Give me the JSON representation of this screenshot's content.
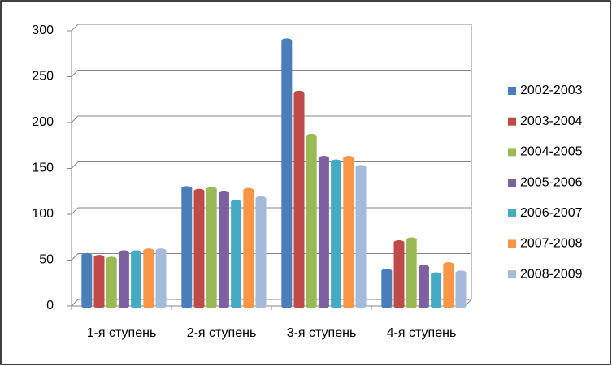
{
  "chart_data": {
    "type": "bar",
    "categories": [
      "1-я ступень",
      "2-я ступень",
      "3-я ступень",
      "4-я ступень"
    ],
    "series": [
      {
        "name": "2002-2003",
        "color": "#4a7ebb",
        "values": [
          55,
          128,
          289,
          38
        ]
      },
      {
        "name": "2003-2004",
        "color": "#be4b48",
        "values": [
          53,
          125,
          232,
          69
        ]
      },
      {
        "name": "2004-2005",
        "color": "#98b954",
        "values": [
          51,
          127,
          185,
          72
        ]
      },
      {
        "name": "2005-2006",
        "color": "#7d60a0",
        "values": [
          58,
          123,
          161,
          42
        ]
      },
      {
        "name": "2006-2007",
        "color": "#46aac5",
        "values": [
          58,
          113,
          157,
          34
        ]
      },
      {
        "name": "2007-2008",
        "color": "#f79646",
        "values": [
          60,
          126,
          161,
          45
        ]
      },
      {
        "name": "2008-2009",
        "color": "#a5b9dd",
        "values": [
          60,
          117,
          151,
          36
        ]
      }
    ],
    "ylim": [
      0,
      300
    ],
    "yticks": [
      0,
      50,
      100,
      150,
      200,
      250,
      300
    ],
    "grid": true,
    "legend": "right"
  }
}
